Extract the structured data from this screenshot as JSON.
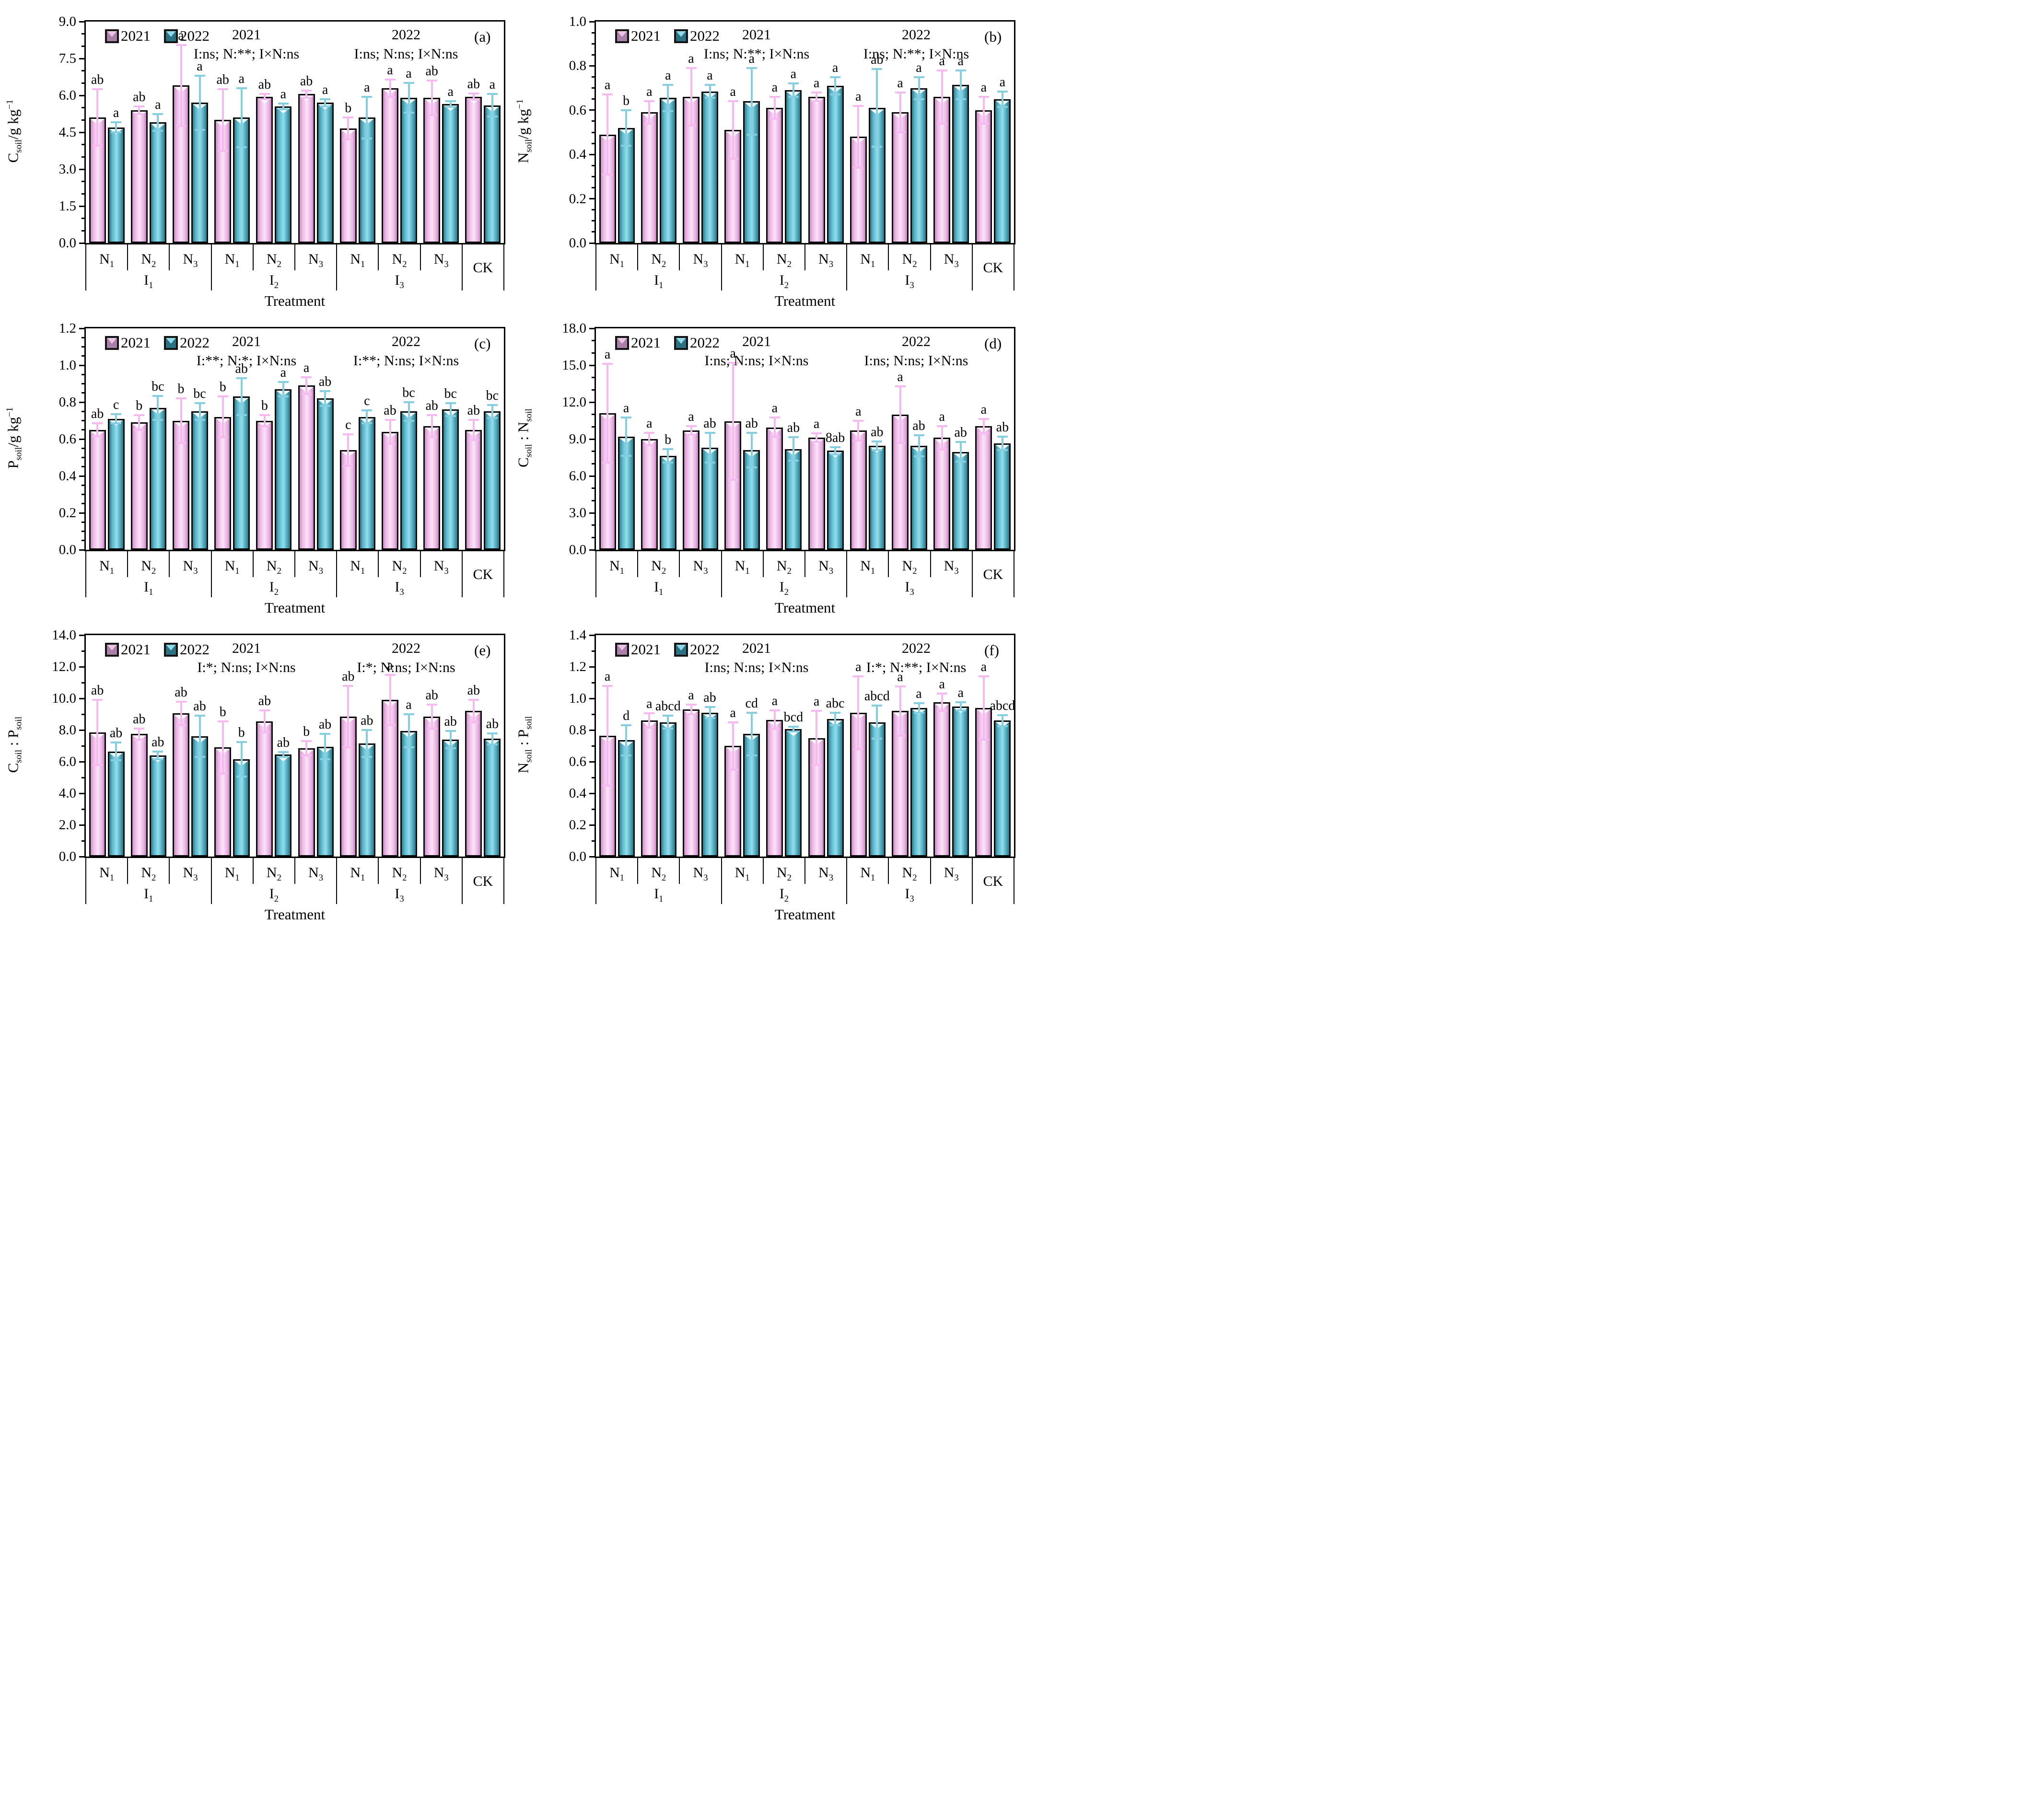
{
  "figure": {
    "legend": [
      {
        "label": "2021",
        "series": "y2021"
      },
      {
        "label": "2022",
        "series": "y2022"
      }
    ],
    "xlabel": "Treatment",
    "categories": [
      "N1",
      "N2",
      "N3",
      "N1",
      "N2",
      "N3",
      "N1",
      "N2",
      "N3",
      ""
    ],
    "groups": [
      {
        "label": "I1",
        "span": 3
      },
      {
        "label": "I2",
        "span": 3
      },
      {
        "label": "I3",
        "span": 3
      },
      {
        "label": "CK",
        "span": 1
      }
    ],
    "colors": {
      "y2021": {
        "edge1": "#c78fc0",
        "mid1": "#eebbe8",
        "hi": "#fce4f9",
        "mid2": "#e9b2e2",
        "edge2": "#bf86b8",
        "err": "#f6baf1",
        "legend_dark": "#aa80a8",
        "legend_light": "#e9c6e6"
      },
      "y2022": {
        "edge1": "#2e7c8b",
        "mid1": "#5cb8cb",
        "hi": "#93dfee",
        "mid2": "#4aa2b4",
        "edge2": "#2b7787",
        "err": "#86cfe1",
        "legend_dark": "#2b7181",
        "legend_light": "#8fd9e9"
      },
      "axis": "#000000"
    }
  },
  "chart_data": [
    {
      "type": "bar",
      "letter": "(a)",
      "ylabel_parts": [
        {
          "t": "C"
        },
        {
          "t": "soil",
          "sub": true
        },
        {
          "t": "/g kg"
        },
        {
          "t": "−1",
          "sup": true
        }
      ],
      "ymax": 9.0,
      "ystep": 1.5,
      "minors": 2,
      "decimals": 1,
      "ann_2021_title": "2021",
      "ann_2021": "I:ns; N:**; I×N:ns",
      "ann_2022_title": "2022",
      "ann_2022": "I:ns; N:ns; I×N:ns",
      "series": [
        {
          "name": "2021",
          "key": "y2021",
          "values": [
            5.1,
            5.4,
            6.4,
            5.0,
            5.95,
            6.05,
            4.65,
            6.3,
            5.9,
            5.95
          ],
          "errors": [
            1.15,
            0.15,
            1.65,
            1.25,
            0.1,
            0.15,
            0.45,
            0.35,
            0.7,
            0.12
          ],
          "labels": [
            "ab",
            "ab",
            "a",
            "ab",
            "ab",
            "ab",
            "b",
            "a",
            "ab",
            "ab"
          ]
        },
        {
          "name": "2022",
          "key": "y2022",
          "values": [
            4.7,
            4.9,
            5.7,
            5.1,
            5.55,
            5.7,
            5.1,
            5.9,
            5.65,
            5.6
          ],
          "errors": [
            0.2,
            0.35,
            1.1,
            1.2,
            0.12,
            0.15,
            0.85,
            0.6,
            0.12,
            0.45
          ],
          "labels": [
            "a",
            "a",
            "a",
            "a",
            "a",
            "a",
            "a",
            "a",
            "a",
            "a"
          ]
        }
      ]
    },
    {
      "type": "bar",
      "letter": "(b)",
      "ylabel_parts": [
        {
          "t": "N"
        },
        {
          "t": "soil",
          "sub": true
        },
        {
          "t": "/g kg"
        },
        {
          "t": "−1",
          "sup": true
        }
      ],
      "ymax": 1.0,
      "ystep": 0.2,
      "minors": 3,
      "decimals": 1,
      "ann_2021_title": "2021",
      "ann_2021": "I:ns; N:**; I×N:ns",
      "ann_2022_title": "2022",
      "ann_2022": "I:ns; N:**; I×N:ns",
      "series": [
        {
          "name": "2021",
          "key": "y2021",
          "values": [
            0.49,
            0.59,
            0.66,
            0.51,
            0.61,
            0.66,
            0.48,
            0.59,
            0.66,
            0.6
          ],
          "errors": [
            0.18,
            0.05,
            0.13,
            0.13,
            0.05,
            0.02,
            0.14,
            0.09,
            0.12,
            0.06
          ],
          "labels": [
            "a",
            "a",
            "a",
            "a",
            "a",
            "a",
            "a",
            "a",
            "a",
            "a"
          ]
        },
        {
          "name": "2022",
          "key": "y2022",
          "values": [
            0.52,
            0.655,
            0.685,
            0.64,
            0.69,
            0.71,
            0.61,
            0.7,
            0.715,
            0.65
          ],
          "errors": [
            0.08,
            0.06,
            0.03,
            0.15,
            0.03,
            0.04,
            0.175,
            0.05,
            0.065,
            0.035
          ],
          "labels": [
            "b",
            "a",
            "a",
            "a",
            "a",
            "a",
            "ab",
            "a",
            "a",
            "a"
          ]
        }
      ]
    },
    {
      "type": "bar",
      "letter": "(c)",
      "ylabel_parts": [
        {
          "t": "P"
        },
        {
          "t": "soil",
          "sub": true
        },
        {
          "t": "/g kg"
        },
        {
          "t": "−1",
          "sup": true
        }
      ],
      "ymax": 1.2,
      "ystep": 0.2,
      "minors": 3,
      "decimals": 1,
      "ann_2021_title": "2021",
      "ann_2021": "I:**; N:*; I×N:ns",
      "ann_2022_title": "2022",
      "ann_2022": "I:**; N:ns; I×N:ns",
      "series": [
        {
          "name": "2021",
          "key": "y2021",
          "values": [
            0.65,
            0.69,
            0.7,
            0.72,
            0.7,
            0.89,
            0.54,
            0.64,
            0.67,
            0.65
          ],
          "errors": [
            0.035,
            0.04,
            0.12,
            0.11,
            0.03,
            0.045,
            0.085,
            0.065,
            0.06,
            0.055
          ],
          "labels": [
            "ab",
            "b",
            "b",
            "b",
            "b",
            "a",
            "c",
            "ab",
            "ab",
            "ab"
          ]
        },
        {
          "name": "2022",
          "key": "y2022",
          "values": [
            0.71,
            0.77,
            0.75,
            0.83,
            0.87,
            0.82,
            0.72,
            0.75,
            0.76,
            0.75
          ],
          "errors": [
            0.025,
            0.065,
            0.045,
            0.1,
            0.04,
            0.04,
            0.035,
            0.05,
            0.035,
            0.035
          ],
          "labels": [
            "c",
            "bc",
            "bc",
            "ab",
            "a",
            "ab",
            "c",
            "bc",
            "bc",
            "bc"
          ]
        }
      ]
    },
    {
      "type": "bar",
      "letter": "(d)",
      "ylabel_parts": [
        {
          "t": "C"
        },
        {
          "t": "soil",
          "sub": true
        },
        {
          "t": " : "
        },
        {
          "t": "N"
        },
        {
          "t": "soil",
          "sub": true
        }
      ],
      "ymax": 18.0,
      "ystep": 3.0,
      "minors": 2,
      "decimals": 1,
      "ann_2021_title": "2021",
      "ann_2021": "I:ns; N:ns; I×N:ns",
      "ann_2022_title": "2022",
      "ann_2022": "I:ns; N:ns; I×N:ns",
      "series": [
        {
          "name": "2021",
          "key": "y2021",
          "values": [
            11.1,
            9.0,
            9.7,
            10.45,
            9.95,
            9.1,
            9.7,
            11.0,
            9.1,
            10.05
          ],
          "errors": [
            4.0,
            0.5,
            0.35,
            4.75,
            0.8,
            0.35,
            0.8,
            2.3,
            0.95,
            0.6
          ],
          "labels": [
            "a",
            "a",
            "a",
            "a",
            "a",
            "a",
            "a",
            "a",
            "a",
            "a"
          ]
        },
        {
          "name": "2022",
          "key": "y2022",
          "values": [
            9.2,
            7.65,
            8.3,
            8.1,
            8.2,
            8.05,
            8.45,
            8.45,
            7.95,
            8.65
          ],
          "errors": [
            1.55,
            0.55,
            1.2,
            1.4,
            0.95,
            0.3,
            0.35,
            0.85,
            0.8,
            0.55
          ],
          "labels": [
            "a",
            "b",
            "ab",
            "ab",
            "ab",
            "8ab",
            "ab",
            "ab",
            "ab",
            "ab"
          ]
        }
      ]
    },
    {
      "type": "bar",
      "letter": "(e)",
      "ylabel_parts": [
        {
          "t": "C"
        },
        {
          "t": "soil",
          "sub": true
        },
        {
          "t": " : "
        },
        {
          "t": "P"
        },
        {
          "t": "soil",
          "sub": true
        }
      ],
      "ymax": 14.0,
      "ystep": 2.0,
      "minors": 1,
      "decimals": 1,
      "ann_2021_title": "2021",
      "ann_2021": "I:*; N:ns; I×N:ns",
      "ann_2022_title": "2022",
      "ann_2022": "I:*; N:ns; I×N:ns",
      "series": [
        {
          "name": "2021",
          "key": "y2021",
          "values": [
            7.85,
            7.75,
            9.05,
            6.9,
            8.55,
            6.85,
            8.85,
            9.9,
            8.85,
            9.2
          ],
          "errors": [
            2.05,
            0.35,
            0.75,
            1.65,
            0.7,
            0.45,
            1.95,
            1.6,
            0.75,
            0.7
          ],
          "labels": [
            "ab",
            "ab",
            "ab",
            "b",
            "ab",
            "b",
            "ab",
            "a",
            "ab",
            "ab"
          ]
        },
        {
          "name": "2022",
          "key": "y2022",
          "values": [
            6.65,
            6.4,
            7.6,
            6.15,
            6.45,
            6.95,
            7.15,
            7.95,
            7.4,
            7.45
          ],
          "errors": [
            0.55,
            0.25,
            1.3,
            1.1,
            0.15,
            0.8,
            0.85,
            1.05,
            0.55,
            0.35
          ],
          "labels": [
            "ab",
            "ab",
            "ab",
            "b",
            "ab",
            "ab",
            "ab",
            "a",
            "ab",
            "ab"
          ]
        }
      ]
    },
    {
      "type": "bar",
      "letter": "(f)",
      "ylabel_parts": [
        {
          "t": "N"
        },
        {
          "t": "soil",
          "sub": true
        },
        {
          "t": " : "
        },
        {
          "t": "P"
        },
        {
          "t": "soil",
          "sub": true
        }
      ],
      "ymax": 1.4,
      "ystep": 0.2,
      "minors": 1,
      "decimals": 1,
      "ann_2021_title": "2021",
      "ann_2021": "I:ns; N:ns; I×N:ns",
      "ann_2022_title": "2022",
      "ann_2022": "I:*; N:**; I×N:ns",
      "series": [
        {
          "name": "2021",
          "key": "y2021",
          "values": [
            0.765,
            0.86,
            0.93,
            0.7,
            0.865,
            0.75,
            0.91,
            0.92,
            0.975,
            0.94
          ],
          "errors": [
            0.315,
            0.045,
            0.03,
            0.15,
            0.06,
            0.17,
            0.23,
            0.155,
            0.055,
            0.2
          ],
          "labels": [
            "a",
            "a",
            "a",
            "a",
            "a",
            "a",
            "a",
            "a",
            "a",
            "a"
          ]
        },
        {
          "name": "2022",
          "key": "y2022",
          "values": [
            0.735,
            0.85,
            0.91,
            0.775,
            0.805,
            0.87,
            0.85,
            0.94,
            0.95,
            0.86
          ],
          "errors": [
            0.095,
            0.04,
            0.035,
            0.135,
            0.015,
            0.04,
            0.105,
            0.03,
            0.025,
            0.035
          ],
          "labels": [
            "d",
            "abcd",
            "ab",
            "cd",
            "bcd",
            "abc",
            "abcd",
            "a",
            "a",
            "abcd"
          ]
        }
      ]
    }
  ]
}
